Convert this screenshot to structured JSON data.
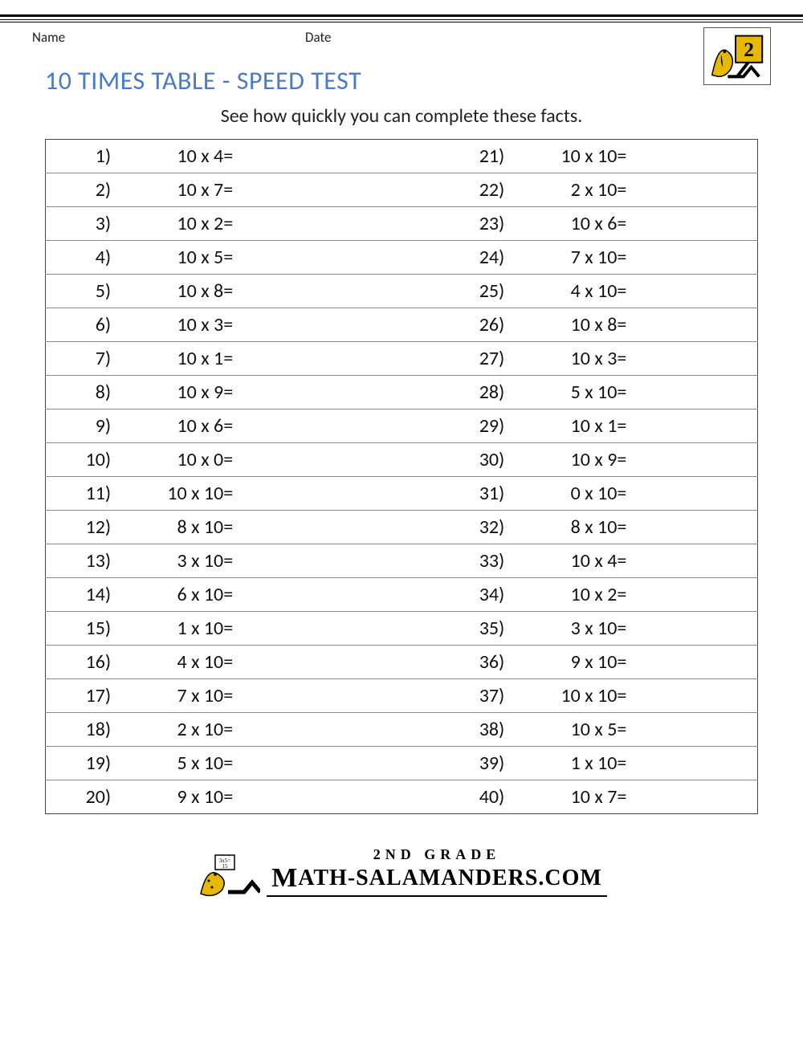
{
  "header": {
    "name_label": "Name",
    "date_label": "Date"
  },
  "title": "10 TIMES TABLE - SPEED TEST",
  "subtitle": "See how quickly you can complete these facts.",
  "colors": {
    "title": "#4a7bc4",
    "text": "#111111",
    "rule": "#000000",
    "grid": "#888888",
    "logo_accent": "#e6b800"
  },
  "typography": {
    "title_fontsize": 32,
    "subtitle_fontsize": 24,
    "cell_fontsize": 24,
    "header_label_fontsize": 17
  },
  "table": {
    "type": "worksheet-grid",
    "rows": 20,
    "left": [
      {
        "n": "1)",
        "expr": "10 x 4"
      },
      {
        "n": "2)",
        "expr": "10 x 7"
      },
      {
        "n": "3)",
        "expr": "10 x 2"
      },
      {
        "n": "4)",
        "expr": "10 x 5"
      },
      {
        "n": "5)",
        "expr": "10 x 8"
      },
      {
        "n": "6)",
        "expr": "10 x 3"
      },
      {
        "n": "7)",
        "expr": "10 x 1"
      },
      {
        "n": "8)",
        "expr": "10 x 9"
      },
      {
        "n": "9)",
        "expr": "10 x 6"
      },
      {
        "n": "10)",
        "expr": "10 x 0"
      },
      {
        "n": "11)",
        "expr": "10 x 10"
      },
      {
        "n": "12)",
        "expr": "8 x 10"
      },
      {
        "n": "13)",
        "expr": "3 x 10"
      },
      {
        "n": "14)",
        "expr": "6 x 10"
      },
      {
        "n": "15)",
        "expr": "1 x 10"
      },
      {
        "n": "16)",
        "expr": "4 x 10"
      },
      {
        "n": "17)",
        "expr": "7 x 10"
      },
      {
        "n": "18)",
        "expr": "2 x 10"
      },
      {
        "n": "19)",
        "expr": "5 x 10"
      },
      {
        "n": "20)",
        "expr": "9 x 10"
      }
    ],
    "right": [
      {
        "n": "21)",
        "expr": "10 x 10"
      },
      {
        "n": "22)",
        "expr": "2 x 10"
      },
      {
        "n": "23)",
        "expr": "10 x 6"
      },
      {
        "n": "24)",
        "expr": "7 x 10"
      },
      {
        "n": "25)",
        "expr": "4 x 10"
      },
      {
        "n": "26)",
        "expr": "10 x 8"
      },
      {
        "n": "27)",
        "expr": "10 x 3"
      },
      {
        "n": "28)",
        "expr": "5 x 10"
      },
      {
        "n": "29)",
        "expr": "10 x 1"
      },
      {
        "n": "30)",
        "expr": "10 x 9"
      },
      {
        "n": "31)",
        "expr": "0 x 10"
      },
      {
        "n": "32)",
        "expr": "8 x 10"
      },
      {
        "n": "33)",
        "expr": "10 x 4"
      },
      {
        "n": "34)",
        "expr": "10 x 2"
      },
      {
        "n": "35)",
        "expr": "3 x 10"
      },
      {
        "n": "36)",
        "expr": "9 x 10"
      },
      {
        "n": "37)",
        "expr": "10 x 10"
      },
      {
        "n": "38)",
        "expr": "10 x 5"
      },
      {
        "n": "39)",
        "expr": "1 x 10"
      },
      {
        "n": "40)",
        "expr": "10 x 7"
      }
    ],
    "equals": "="
  },
  "footer": {
    "grade": "2ND GRADE",
    "site": "ATH-SALAMANDERS.COM"
  }
}
